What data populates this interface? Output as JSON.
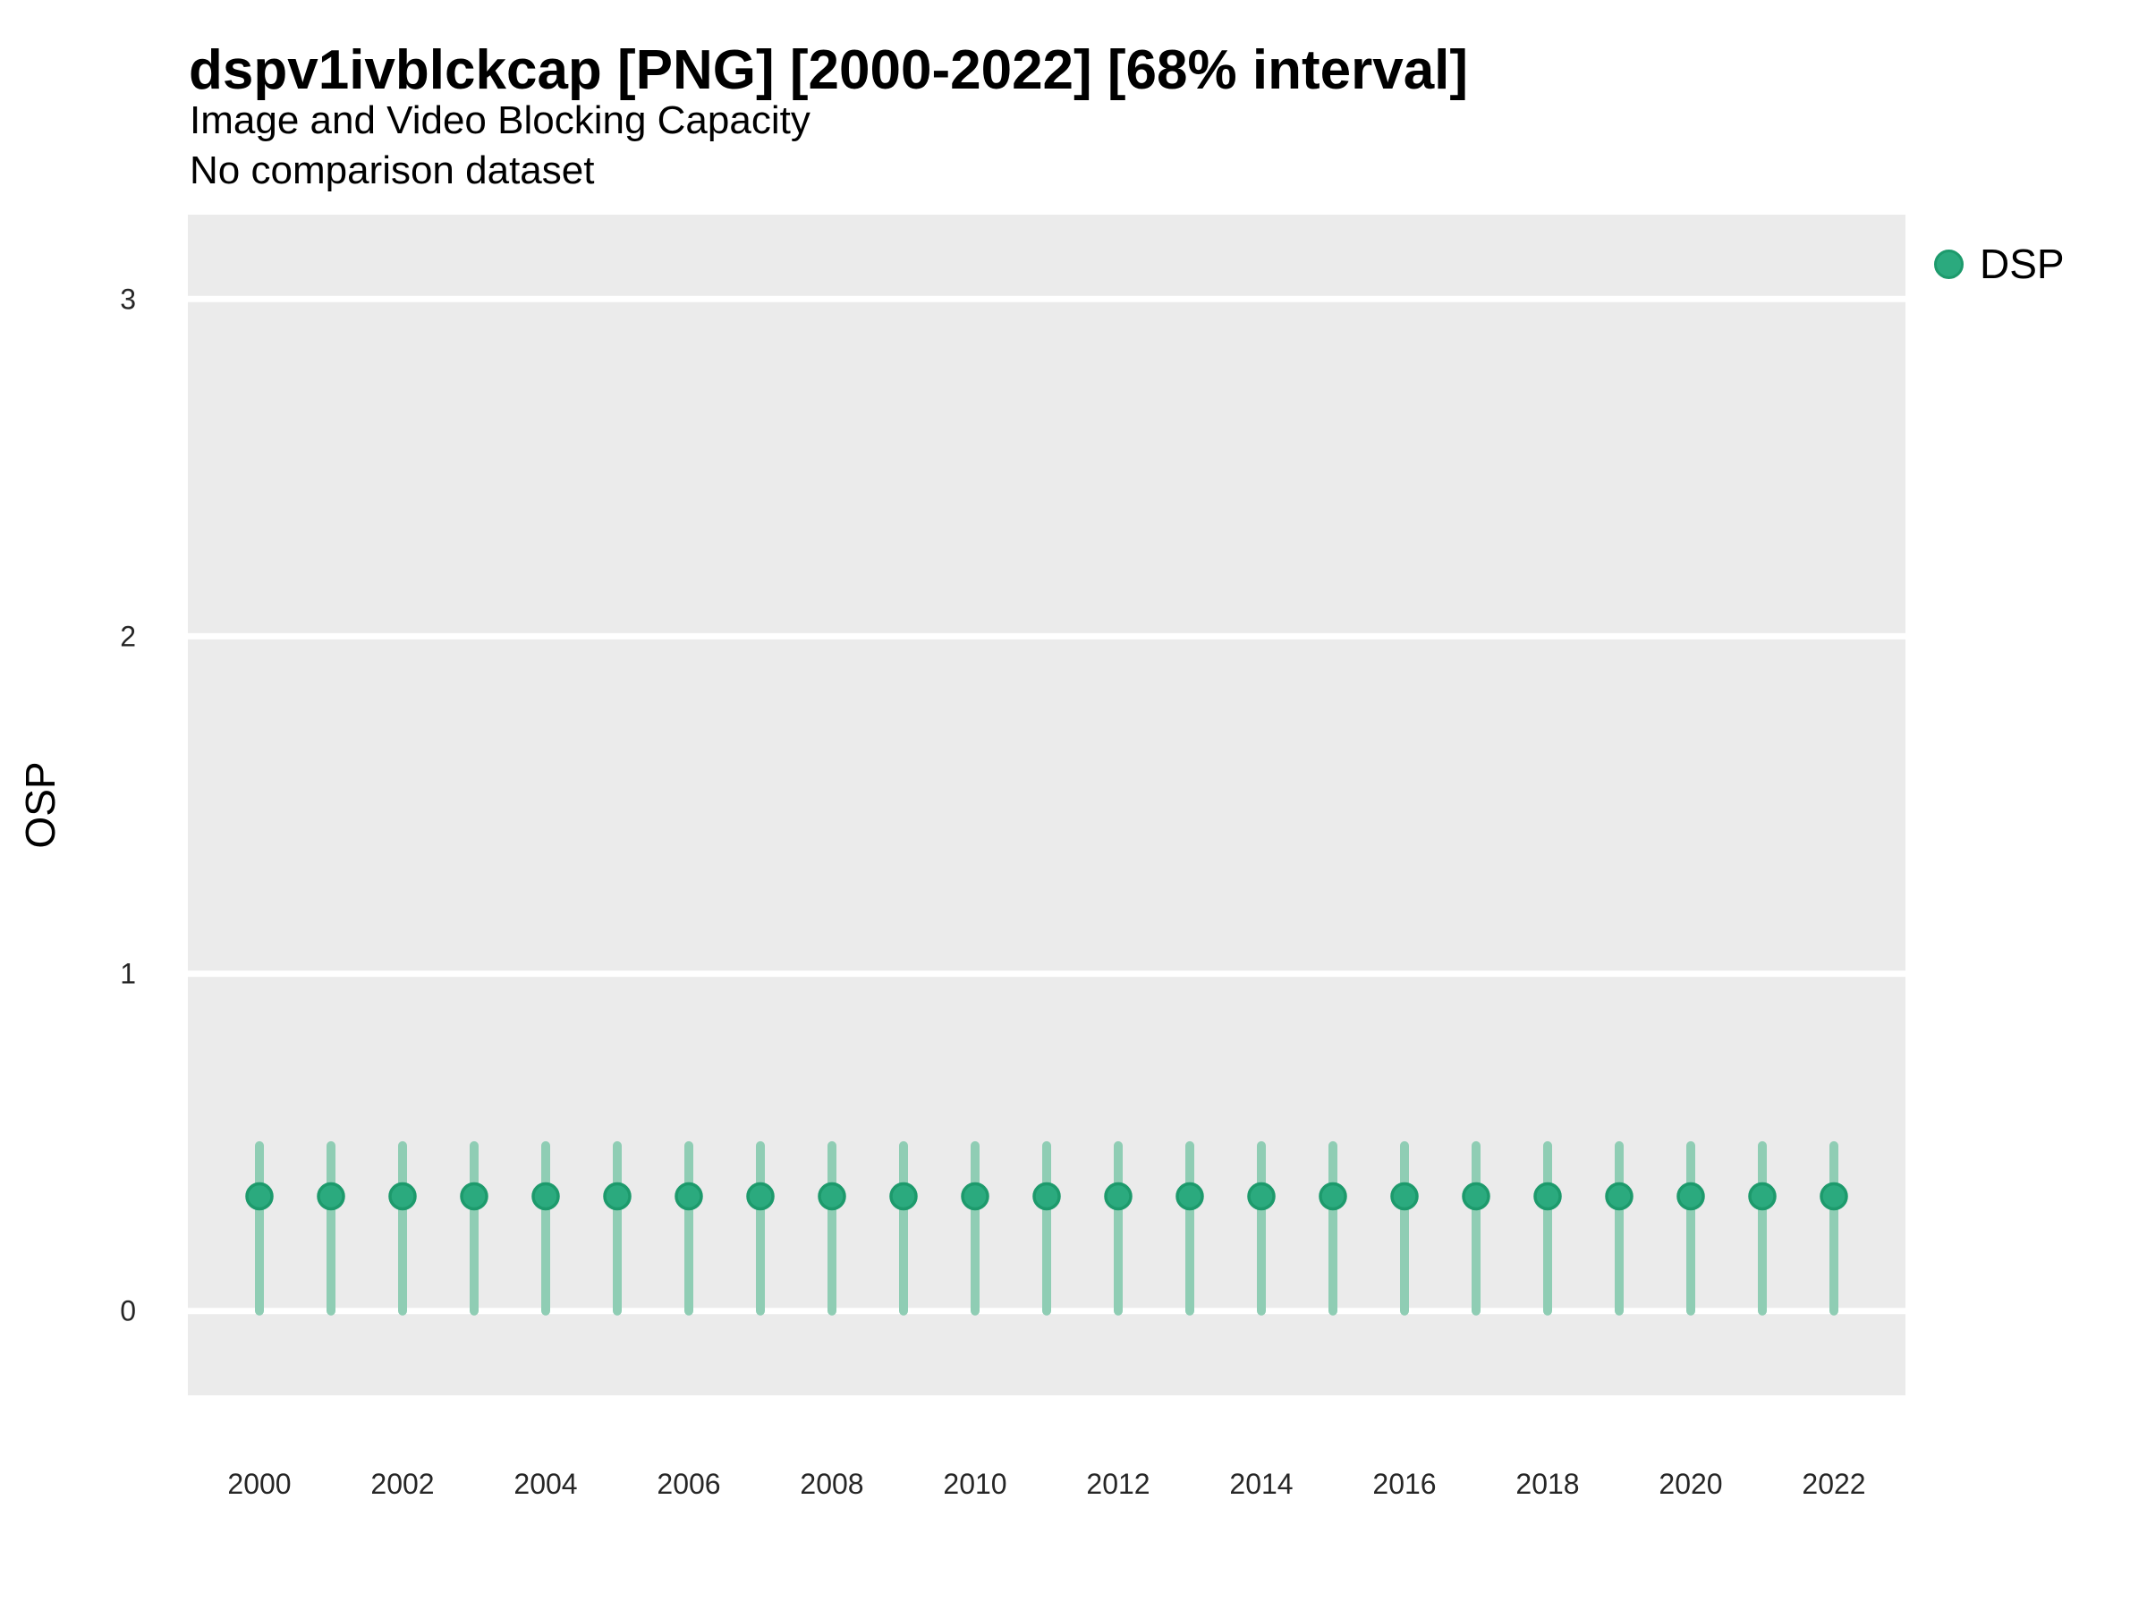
{
  "header": {
    "title": "dspv1ivblckcap [PNG] [2000-2022] [68% interval]",
    "subtitle": "Image and Video Blocking Capacity",
    "comparison_note": "No comparison dataset"
  },
  "legend": {
    "position": "right",
    "items": [
      {
        "label": "DSP",
        "marker": "circle",
        "fill": "#2BAA7E",
        "stroke": "#1D9A6C"
      }
    ]
  },
  "chart_data": {
    "type": "scatter",
    "title": "dspv1ivblckcap [PNG] [2000-2022] [68% interval]",
    "subtitle": "Image and Video Blocking Capacity",
    "note": "No comparison dataset",
    "interval_level": "68%",
    "xlabel": "",
    "ylabel": "OSP",
    "xlim": [
      1999,
      2023
    ],
    "ylim": [
      -0.25,
      3.25
    ],
    "x_tick_labels": [
      2000,
      2002,
      2004,
      2006,
      2008,
      2010,
      2012,
      2014,
      2016,
      2018,
      2020,
      2022
    ],
    "y_tick_labels": [
      0,
      1,
      2,
      3
    ],
    "grid": "major-horizontal-white",
    "panel_background": "#EBEBEB",
    "gridline_color": "#FFFFFF",
    "axis_text_color": "#262626",
    "series": [
      {
        "name": "DSP",
        "point_color": "#2BAA7E",
        "point_stroke_color": "#1D9A6C",
        "interval_color": "#8FCDB4",
        "x": [
          2000,
          2001,
          2002,
          2003,
          2004,
          2005,
          2006,
          2007,
          2008,
          2009,
          2010,
          2011,
          2012,
          2013,
          2014,
          2015,
          2016,
          2017,
          2018,
          2019,
          2020,
          2021,
          2022
        ],
        "points": [
          0.34,
          0.34,
          0.34,
          0.34,
          0.34,
          0.34,
          0.34,
          0.34,
          0.34,
          0.34,
          0.34,
          0.34,
          0.34,
          0.34,
          0.34,
          0.34,
          0.34,
          0.34,
          0.34,
          0.34,
          0.34,
          0.34,
          0.34
        ],
        "lower": [
          0.0,
          0.0,
          0.0,
          0.0,
          0.0,
          0.0,
          0.0,
          0.0,
          0.0,
          0.0,
          0.0,
          0.0,
          0.0,
          0.0,
          0.0,
          0.0,
          0.0,
          0.0,
          0.0,
          0.0,
          0.0,
          0.0,
          0.0
        ],
        "upper": [
          0.49,
          0.49,
          0.49,
          0.49,
          0.49,
          0.49,
          0.49,
          0.49,
          0.49,
          0.49,
          0.49,
          0.49,
          0.49,
          0.49,
          0.49,
          0.49,
          0.49,
          0.49,
          0.49,
          0.49,
          0.49,
          0.49,
          0.49
        ]
      }
    ]
  }
}
